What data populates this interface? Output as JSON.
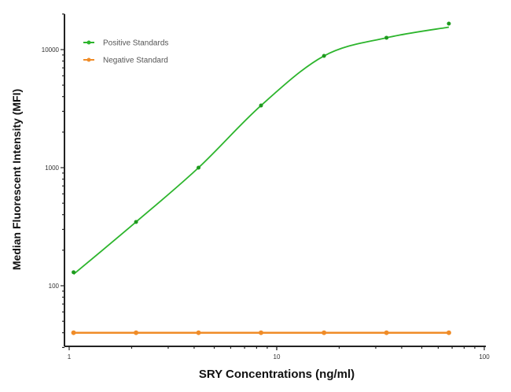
{
  "chart_data": {
    "type": "line",
    "title": "",
    "xlabel": "SRY Concentrations (ng/ml)",
    "ylabel": "Median  Fluorescent Intensity  (MFI)",
    "xscale": "log",
    "yscale": "log",
    "xlim": [
      1,
      100
    ],
    "ylim": [
      30,
      20000
    ],
    "xticks": [
      {
        "value": 1,
        "label": "1"
      },
      {
        "value": 10,
        "label": "10"
      },
      {
        "value": 100,
        "label": "100"
      }
    ],
    "yticks": [
      {
        "value": 100,
        "label": "100"
      },
      {
        "value": 1000,
        "label": "1000"
      },
      {
        "value": 10000,
        "label": "10000"
      }
    ],
    "grid": false,
    "legend_position": "top-left",
    "x": [
      1.05,
      2.1,
      4.2,
      8.4,
      16.9,
      33.8,
      67.5
    ],
    "series": [
      {
        "name": "Positive Standards",
        "color": "#2db52d",
        "values": [
          130,
          347,
          1000,
          3360,
          8840,
          12600,
          16600
        ],
        "fit": "sigmoidal curve"
      },
      {
        "name": "Negative Standard",
        "color": "#f08c28",
        "values": [
          40,
          40,
          40,
          40,
          40,
          40,
          40
        ],
        "fit": "connecting line"
      }
    ]
  }
}
